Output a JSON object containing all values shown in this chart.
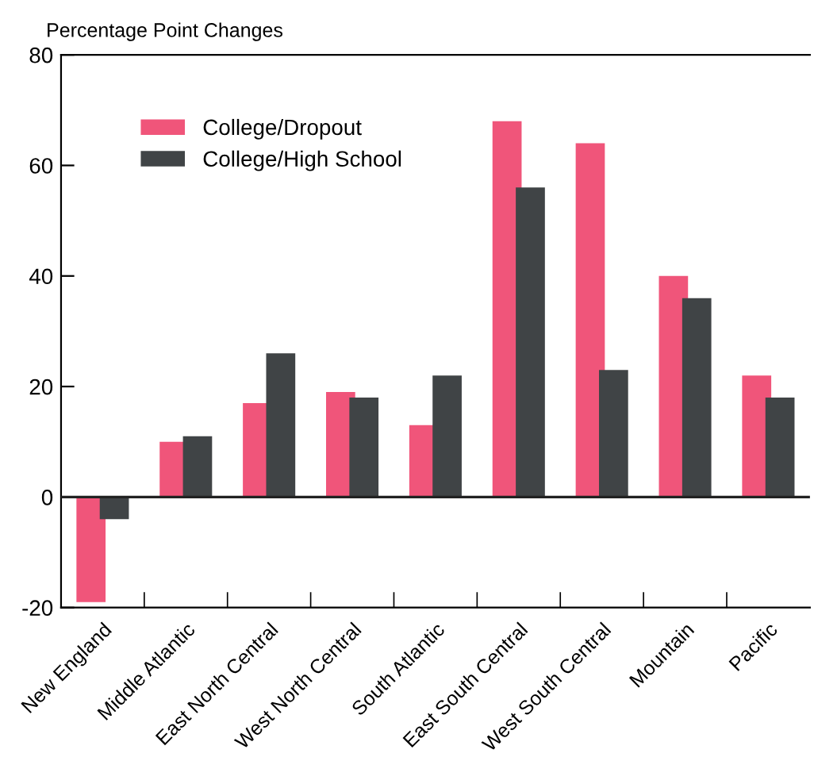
{
  "chart_data": {
    "type": "bar",
    "ylabel": "Percentage Point Changes",
    "categories": [
      "New England",
      "Middle Atlantic",
      "East North Central",
      "West North Central",
      "South Atlantic",
      "East South Central",
      "West South Central",
      "Mountain",
      "Pacific"
    ],
    "series": [
      {
        "name": "College/Dropout",
        "color": "#f0557a",
        "values": [
          -19,
          10,
          17,
          19,
          13,
          68,
          64,
          40,
          22
        ]
      },
      {
        "name": "College/High School",
        "color": "#404446",
        "values": [
          -4,
          11,
          26,
          18,
          22,
          56,
          23,
          36,
          18
        ]
      }
    ],
    "ylim": [
      -20,
      80
    ],
    "yticks": [
      -20,
      0,
      20,
      40,
      60,
      80
    ],
    "ref_lines": [
      {
        "axis": "y",
        "value": 0,
        "color": "#222222"
      }
    ],
    "grid": false,
    "legend": "top left"
  }
}
